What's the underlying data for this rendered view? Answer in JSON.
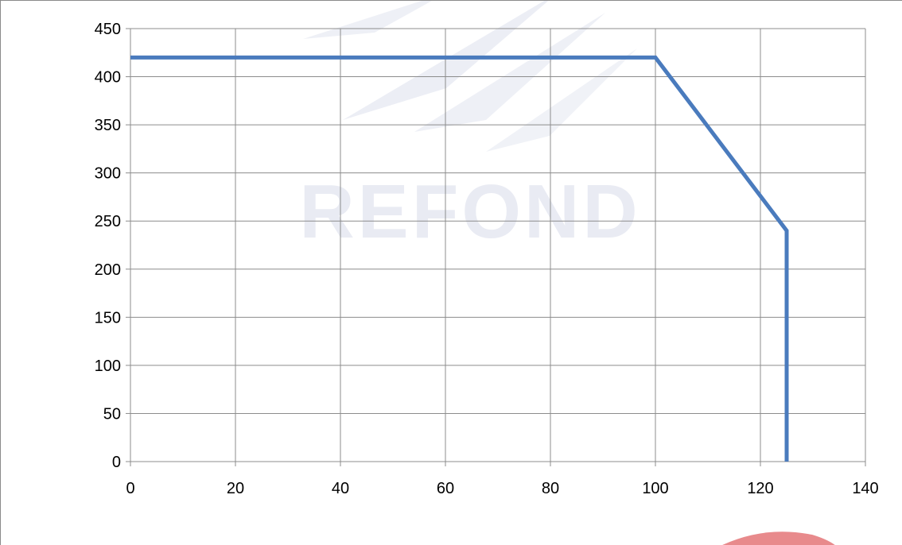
{
  "chart_data": {
    "type": "line",
    "title": "",
    "xlabel": "",
    "ylabel": "",
    "xlim": [
      0,
      140
    ],
    "ylim": [
      0,
      450
    ],
    "x_ticks": [
      0,
      20,
      40,
      60,
      80,
      100,
      120,
      140
    ],
    "y_ticks": [
      0,
      50,
      100,
      150,
      200,
      250,
      300,
      350,
      400,
      450
    ],
    "x_tick_labels": [
      "0",
      "20",
      "40",
      "60",
      "80",
      "100",
      "120",
      "140"
    ],
    "y_tick_labels": [
      "0",
      "50",
      "100",
      "150",
      "200",
      "250",
      "300",
      "350",
      "400",
      "450"
    ],
    "grid": true,
    "legend": "none",
    "series": [
      {
        "color": "#4a7bbd",
        "points": [
          {
            "x": 0,
            "y": 420
          },
          {
            "x": 100,
            "y": 420
          },
          {
            "x": 125,
            "y": 240
          },
          {
            "x": 125,
            "y": 0
          }
        ]
      }
    ]
  },
  "watermark": {
    "text": "REFOND",
    "color": "#e9ebf3"
  },
  "colors": {
    "grid": "#8c8c8c",
    "axis": "#8c8c8c",
    "line": "#4a7bbd",
    "logo_accent": "#e88a8c"
  }
}
